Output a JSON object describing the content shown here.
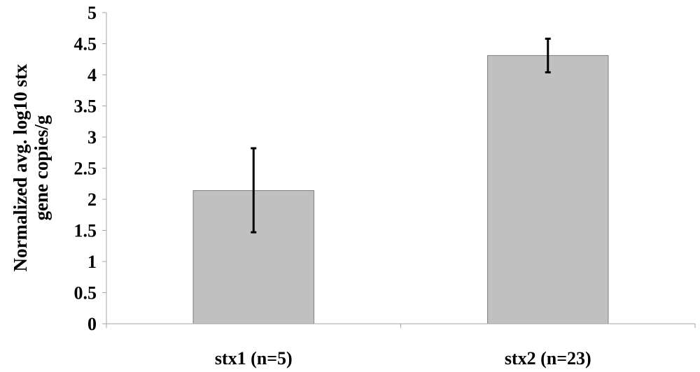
{
  "chart_data": {
    "type": "bar",
    "title": "",
    "xlabel": "",
    "ylabel_lines": [
      "Normalized avg. log10 stx",
      "gene copies/g"
    ],
    "categories": [
      "stx1 (n=5)",
      "stx2 (n=23)"
    ],
    "values": [
      2.14,
      4.31
    ],
    "error_low": [
      1.47,
      4.04
    ],
    "error_high": [
      2.82,
      4.58
    ],
    "ylim": [
      0,
      5
    ],
    "yticks": [
      "0",
      "0.5",
      "1",
      "1.5",
      "2",
      "2.5",
      "3",
      "3.5",
      "4",
      "4.5",
      "5"
    ],
    "grid": false,
    "legend": "none",
    "colors": {
      "bar_fill": "#c0c0c0",
      "bar_stroke": "#7f7f7f",
      "axis": "#a6a6a6",
      "error_bar": "#000000"
    }
  }
}
